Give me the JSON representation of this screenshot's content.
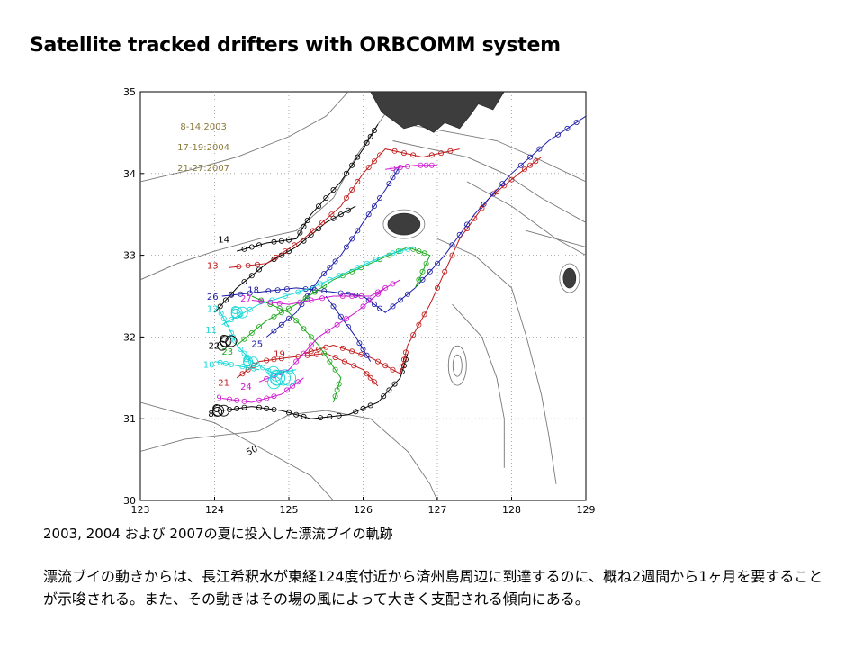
{
  "slide": {
    "title": "Satellite tracked drifters with ORBCOMM system",
    "caption": "2003, 2004 および 2007の夏に投入した漂流ブイの軌跡",
    "body": "漂流ブイの動きからは、長江希釈水が東経124度付近から済州島周辺に到達するのに、概ね2週間から1ヶ月を要することが示唆される。また、その動きはその場の風によって大きく支配される傾向にある。"
  },
  "map": {
    "lon_range": [
      123,
      129
    ],
    "lat_range": [
      30,
      35
    ],
    "x_ticks": [
      "123",
      "124",
      "125",
      "126",
      "127",
      "128",
      "129"
    ],
    "y_ticks": [
      "30",
      "31",
      "32",
      "33",
      "34",
      "35"
    ],
    "grid": "dotted",
    "periods": [
      "8-14:2003",
      "17-19:2004",
      "21-27:2007"
    ],
    "contour_label": "50",
    "land_color": "#3d3d3d",
    "track_colors": {
      "black": "#000000",
      "red": "#c01818",
      "blue": "#1a1aa8",
      "green": "#1aa81a",
      "cyan": "#18d8d8",
      "magenta": "#d018d0"
    },
    "drifter_ids": [
      {
        "id": "14",
        "lon": 124.2,
        "lat": 33.2,
        "color": "#000000"
      },
      {
        "id": "13",
        "lon": 124.05,
        "lat": 32.88,
        "color": "#c01818"
      },
      {
        "id": "26",
        "lon": 124.05,
        "lat": 32.5,
        "color": "#1a1aa8"
      },
      {
        "id": "18",
        "lon": 124.6,
        "lat": 32.58,
        "color": "#1a1aa8"
      },
      {
        "id": "27",
        "lon": 124.5,
        "lat": 32.48,
        "color": "#d018d0"
      },
      {
        "id": "12",
        "lon": 124.05,
        "lat": 32.35,
        "color": "#18d8d8"
      },
      {
        "id": "11",
        "lon": 124.03,
        "lat": 32.09,
        "color": "#18d8d8"
      },
      {
        "id": "22",
        "lon": 124.07,
        "lat": 31.9,
        "color": "#000000"
      },
      {
        "id": "23",
        "lon": 124.25,
        "lat": 31.83,
        "color": "#1aa81a"
      },
      {
        "id": "25",
        "lon": 124.65,
        "lat": 31.92,
        "color": "#1a1aa8"
      },
      {
        "id": "19",
        "lon": 124.95,
        "lat": 31.8,
        "color": "#c01818"
      },
      {
        "id": "10",
        "lon": 124.0,
        "lat": 31.67,
        "color": "#18d8d8"
      },
      {
        "id": "21",
        "lon": 124.2,
        "lat": 31.45,
        "color": "#c01818"
      },
      {
        "id": "24",
        "lon": 124.5,
        "lat": 31.4,
        "color": "#d018d0"
      },
      {
        "id": "9",
        "lon": 124.1,
        "lat": 31.26,
        "color": "#d018d0"
      },
      {
        "id": "8",
        "lon": 123.99,
        "lat": 31.07,
        "color": "#000000"
      }
    ]
  }
}
